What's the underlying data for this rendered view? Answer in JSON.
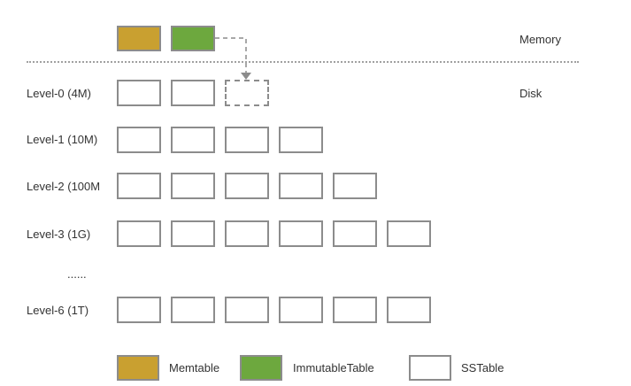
{
  "regions": {
    "memory": "Memory",
    "disk": "Disk"
  },
  "levels": [
    {
      "label": "Level-0 (4M)",
      "count": 2,
      "pending": 1
    },
    {
      "label": "Level-1 (10M)",
      "count": 4,
      "pending": 0
    },
    {
      "label": "Level-2 (100M",
      "count": 5,
      "pending": 0
    },
    {
      "label": "Level-3 (1G)",
      "count": 6,
      "pending": 0
    },
    {
      "label": "Level-6 (1T)",
      "count": 6,
      "pending": 0
    }
  ],
  "ellipsis": "......",
  "legend": {
    "memtable": "Memtable",
    "immutable": "ImmutableTable",
    "sstable": "SSTable"
  },
  "colors": {
    "memtable": "#c9a030",
    "immutable": "#6da83e",
    "sstable_border": "#8c8c8c",
    "dashed": "#8c8c8c"
  }
}
